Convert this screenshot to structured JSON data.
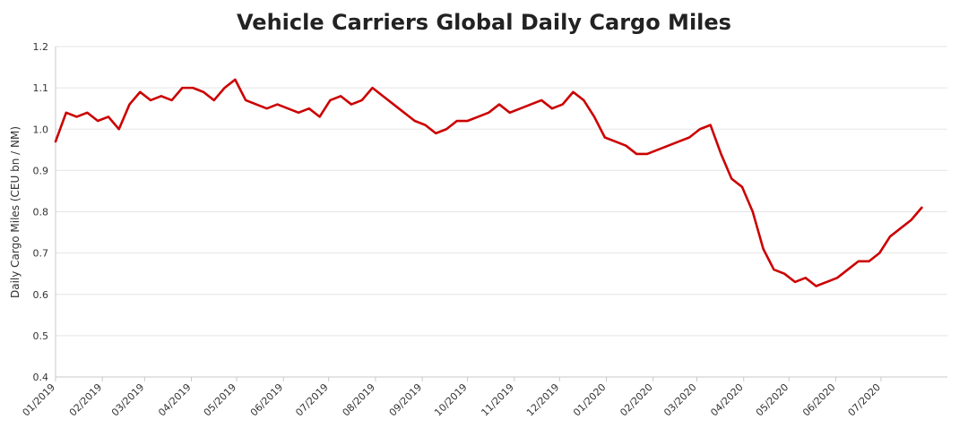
{
  "chart_data": {
    "type": "line",
    "title": "Vehicle Carriers Global Daily Cargo Miles",
    "xlabel": "",
    "ylabel": "Daily Cargo Miles (CEU bn / NM)",
    "ylim": [
      0.4,
      1.2
    ],
    "yticks": [
      "0.4",
      "0.5",
      "0.6",
      "0.7",
      "0.8",
      "0.9",
      "1.0",
      "1.1",
      "1.2"
    ],
    "xticks": [
      "01/2019",
      "02/2019",
      "03/2019",
      "04/2019",
      "05/2019",
      "06/2019",
      "07/2019",
      "08/2019",
      "09/2019",
      "10/2019",
      "11/2019",
      "12/2019",
      "01/2020",
      "02/2020",
      "03/2020",
      "04/2020",
      "05/2020",
      "06/2020",
      "07/2020"
    ],
    "grid": true,
    "legend": "none",
    "color": "#cc0000",
    "series": [
      {
        "x": [
          "2019-01-01",
          "2019-01-08",
          "2019-01-15",
          "2019-01-22",
          "2019-01-29",
          "2019-02-05",
          "2019-02-12",
          "2019-02-19",
          "2019-02-26",
          "2019-03-05",
          "2019-03-12",
          "2019-03-19",
          "2019-03-26",
          "2019-04-02",
          "2019-04-09",
          "2019-04-16",
          "2019-04-23",
          "2019-04-30",
          "2019-05-07",
          "2019-05-14",
          "2019-05-21",
          "2019-05-28",
          "2019-06-04",
          "2019-06-11",
          "2019-06-18",
          "2019-06-25",
          "2019-07-02",
          "2019-07-09",
          "2019-07-16",
          "2019-07-23",
          "2019-07-30",
          "2019-08-06",
          "2019-08-13",
          "2019-08-20",
          "2019-08-27",
          "2019-09-03",
          "2019-09-10",
          "2019-09-17",
          "2019-09-24",
          "2019-10-01",
          "2019-10-08",
          "2019-10-15",
          "2019-10-22",
          "2019-10-29",
          "2019-11-05",
          "2019-11-12",
          "2019-11-19",
          "2019-11-26",
          "2019-12-03",
          "2019-12-10",
          "2019-12-17",
          "2019-12-24",
          "2019-12-31",
          "2020-01-07",
          "2020-01-14",
          "2020-01-21",
          "2020-01-28",
          "2020-02-04",
          "2020-02-11",
          "2020-02-18",
          "2020-02-25",
          "2020-03-03",
          "2020-03-10",
          "2020-03-17",
          "2020-03-24",
          "2020-03-31",
          "2020-04-07",
          "2020-04-14",
          "2020-04-21",
          "2020-04-28",
          "2020-05-05",
          "2020-05-12",
          "2020-05-19",
          "2020-05-26",
          "2020-06-02",
          "2020-06-09",
          "2020-06-16",
          "2020-06-23",
          "2020-06-30",
          "2020-07-07",
          "2020-07-14",
          "2020-07-21",
          "2020-07-28"
        ],
        "values": [
          0.97,
          1.04,
          1.03,
          1.04,
          1.02,
          1.03,
          1.0,
          1.06,
          1.09,
          1.07,
          1.08,
          1.07,
          1.1,
          1.1,
          1.09,
          1.07,
          1.1,
          1.12,
          1.07,
          1.06,
          1.05,
          1.06,
          1.05,
          1.04,
          1.05,
          1.03,
          1.07,
          1.08,
          1.06,
          1.07,
          1.1,
          1.08,
          1.06,
          1.04,
          1.02,
          1.01,
          0.99,
          1.0,
          1.02,
          1.02,
          1.03,
          1.04,
          1.06,
          1.04,
          1.05,
          1.06,
          1.07,
          1.05,
          1.06,
          1.09,
          1.07,
          1.03,
          0.98,
          0.97,
          0.96,
          0.94,
          0.94,
          0.95,
          0.96,
          0.97,
          0.98,
          1.0,
          1.01,
          0.94,
          0.88,
          0.86,
          0.8,
          0.71,
          0.66,
          0.65,
          0.63,
          0.64,
          0.62,
          0.63,
          0.64,
          0.66,
          0.68,
          0.68,
          0.7,
          0.74,
          0.76,
          0.78,
          0.81
        ]
      }
    ]
  }
}
